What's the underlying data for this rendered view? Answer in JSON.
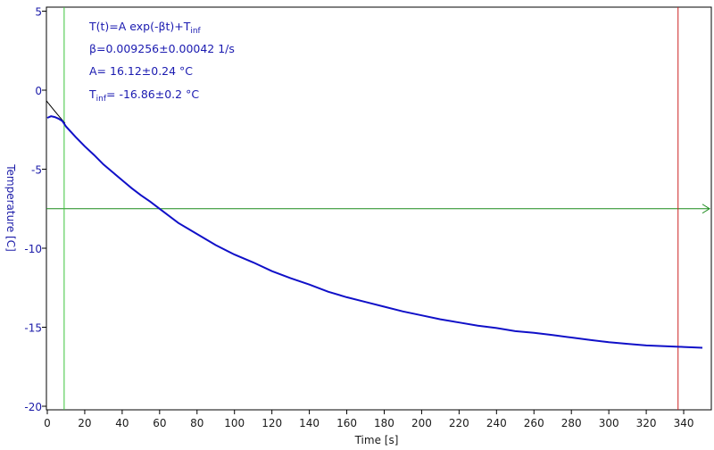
{
  "chart_data": {
    "type": "line",
    "xlabel": "Time [s]",
    "ylabel": "Temperature [C]",
    "xlim": [
      0,
      350
    ],
    "ylim": [
      -20,
      5
    ],
    "x_ticks": [
      0,
      20,
      40,
      60,
      80,
      100,
      120,
      140,
      160,
      180,
      200,
      220,
      240,
      260,
      280,
      300,
      320,
      340
    ],
    "y_ticks": [
      5,
      0,
      -5,
      -10,
      -15,
      -20
    ],
    "grid": false,
    "legend": "none",
    "annotations": {
      "formula_main": "T(t)=A exp(-βt)+T",
      "formula_sub": "inf",
      "beta": "β=0.009256±0.00042 1/s",
      "amplitude": "A= 16.12±0.24 °C",
      "tinf_main": "T",
      "tinf_sub": "inf",
      "tinf_value": "= -16.86±0.2 °C"
    },
    "fit_params": {
      "A": 16.12,
      "beta": 0.009256,
      "t_inf": -16.86
    },
    "series": [
      {
        "x": [
          0,
          2,
          4,
          6,
          8,
          10,
          15,
          20,
          25,
          30,
          35,
          40,
          45,
          50,
          55,
          60,
          70,
          80,
          90,
          100,
          110,
          120,
          130,
          140,
          150,
          160,
          170,
          180,
          190,
          200,
          210,
          220,
          230,
          240,
          250,
          260,
          270,
          280,
          290,
          300,
          310,
          320,
          330,
          340,
          350
        ],
        "y": [
          -1.75,
          -1.65,
          -1.7,
          -1.8,
          -1.95,
          -2.3,
          -2.95,
          -3.55,
          -4.1,
          -4.7,
          -5.2,
          -5.7,
          -6.2,
          -6.65,
          -7.05,
          -7.5,
          -8.4,
          -9.1,
          -9.8,
          -10.4,
          -10.9,
          -11.45,
          -11.9,
          -12.3,
          -12.75,
          -13.1,
          -13.4,
          -13.7,
          -14.0,
          -14.25,
          -14.5,
          -14.7,
          -14.9,
          -15.05,
          -15.25,
          -15.35,
          -15.5,
          -15.65,
          -15.8,
          -15.95,
          -16.05,
          -16.15,
          -16.2,
          -16.25,
          -16.3
        ],
        "color": "#1010c8"
      }
    ],
    "reference_lines": {
      "horizontal_y": -7.5,
      "vertical_green_x": 9,
      "vertical_red_x": 337
    },
    "colors": {
      "data": "#1010c8",
      "fit": "#000000",
      "horizontal_line": "#1a8a1a",
      "green_marker": "#3cc43c",
      "red_marker": "#cc2222",
      "axis_text": "#1a1aa8"
    }
  }
}
